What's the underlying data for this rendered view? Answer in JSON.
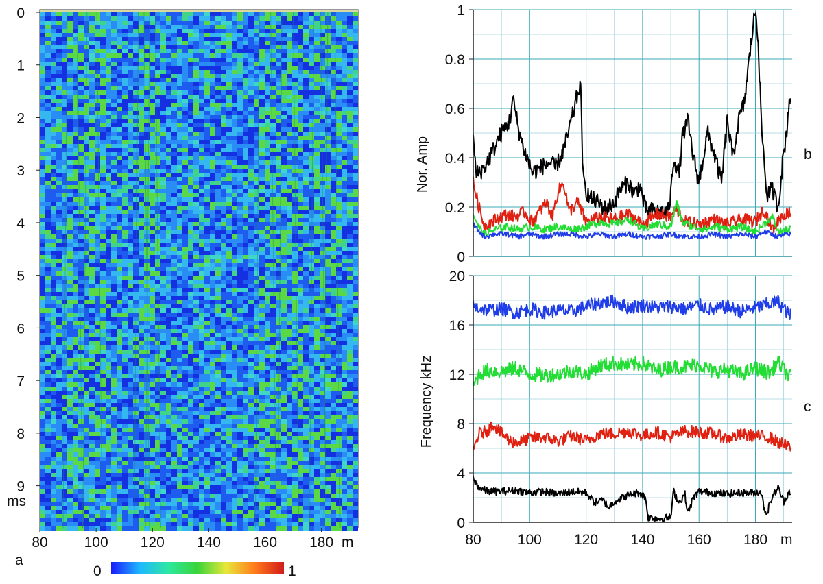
{
  "figure": {
    "panel_labels": {
      "a": "a",
      "b": "b",
      "c": "c"
    }
  },
  "chart_data": [
    {
      "type": "heatmap",
      "panel": "a",
      "x_ticks": [
        "80",
        "100",
        "120",
        "140",
        "160",
        "180"
      ],
      "x_unit": "m",
      "y_ticks": [
        "0",
        "1",
        "2",
        "3",
        "4",
        "5",
        "6",
        "7",
        "8",
        "9"
      ],
      "y_unit": "ms",
      "xlim": [
        80,
        193
      ],
      "ylim": [
        0,
        9.8
      ],
      "colorbar": {
        "min_label": "0",
        "max_label": "1",
        "colors": [
          "#1a1aff",
          "#1fb8ff",
          "#2ee8a0",
          "#3ad43a",
          "#e8e83a",
          "#ff7a1a",
          "#d11a1a"
        ]
      },
      "band_x_ranges": [
        [
          88,
          102
        ],
        [
          114,
          122
        ],
        [
          156,
          172
        ],
        [
          176,
          186
        ]
      ],
      "description_note": ""
    },
    {
      "type": "line",
      "panel": "b",
      "ylabel": "Nor. Amp",
      "y_ticks": [
        "0",
        "0.2",
        "0.4",
        "0.6",
        "0.8",
        "1"
      ],
      "ylim": [
        0,
        1
      ],
      "xlim": [
        80,
        193
      ],
      "grid": true,
      "series": [
        {
          "color": "#000000",
          "anchors": [
            [
              80,
              0.48
            ],
            [
              81,
              0.33
            ],
            [
              84,
              0.36
            ],
            [
              87,
              0.43
            ],
            [
              90,
              0.5
            ],
            [
              93,
              0.55
            ],
            [
              94,
              0.64
            ],
            [
              96,
              0.52
            ],
            [
              97,
              0.47
            ],
            [
              99,
              0.4
            ],
            [
              101,
              0.34
            ],
            [
              104,
              0.36
            ],
            [
              107,
              0.38
            ],
            [
              109,
              0.36
            ],
            [
              111,
              0.4
            ],
            [
              113,
              0.47
            ],
            [
              115,
              0.56
            ],
            [
              117,
              0.66
            ],
            [
              118,
              0.7
            ],
            [
              119,
              0.3
            ],
            [
              121,
              0.24
            ],
            [
              124,
              0.22
            ],
            [
              127,
              0.19
            ],
            [
              130,
              0.22
            ],
            [
              132,
              0.27
            ],
            [
              135,
              0.3
            ],
            [
              137,
              0.25
            ],
            [
              139,
              0.29
            ],
            [
              141,
              0.19
            ],
            [
              145,
              0.18
            ],
            [
              149,
              0.18
            ],
            [
              150,
              0.25
            ],
            [
              151,
              0.4
            ],
            [
              153,
              0.33
            ],
            [
              154,
              0.48
            ],
            [
              156,
              0.55
            ],
            [
              158,
              0.4
            ],
            [
              160,
              0.3
            ],
            [
              163,
              0.5
            ],
            [
              165,
              0.43
            ],
            [
              168,
              0.3
            ],
            [
              170,
              0.55
            ],
            [
              172,
              0.4
            ],
            [
              174,
              0.55
            ],
            [
              176,
              0.62
            ],
            [
              178,
              0.82
            ],
            [
              179,
              0.92
            ],
            [
              180,
              1.0
            ],
            [
              181,
              0.88
            ],
            [
              182,
              0.55
            ],
            [
              184,
              0.25
            ],
            [
              186,
              0.27
            ],
            [
              188,
              0.2
            ],
            [
              190,
              0.42
            ],
            [
              191,
              0.5
            ],
            [
              192,
              0.64
            ]
          ]
        },
        {
          "color": "#e02010",
          "anchors": [
            [
              80,
              0.3
            ],
            [
              82,
              0.2
            ],
            [
              84,
              0.12
            ],
            [
              88,
              0.15
            ],
            [
              92,
              0.17
            ],
            [
              95,
              0.16
            ],
            [
              98,
              0.18
            ],
            [
              101,
              0.14
            ],
            [
              104,
              0.19
            ],
            [
              106,
              0.22
            ],
            [
              108,
              0.16
            ],
            [
              110,
              0.26
            ],
            [
              112,
              0.3
            ],
            [
              114,
              0.18
            ],
            [
              117,
              0.22
            ],
            [
              120,
              0.14
            ],
            [
              125,
              0.16
            ],
            [
              130,
              0.15
            ],
            [
              135,
              0.17
            ],
            [
              140,
              0.13
            ],
            [
              145,
              0.17
            ],
            [
              150,
              0.16
            ],
            [
              152,
              0.19
            ],
            [
              155,
              0.14
            ],
            [
              160,
              0.13
            ],
            [
              165,
              0.15
            ],
            [
              170,
              0.13
            ],
            [
              175,
              0.15
            ],
            [
              180,
              0.14
            ],
            [
              183,
              0.19
            ],
            [
              186,
              0.11
            ],
            [
              189,
              0.16
            ],
            [
              192,
              0.18
            ]
          ]
        },
        {
          "color": "#22dd33",
          "anchors": [
            [
              80,
              0.17
            ],
            [
              82,
              0.12
            ],
            [
              84,
              0.09
            ],
            [
              88,
              0.11
            ],
            [
              92,
              0.12
            ],
            [
              96,
              0.11
            ],
            [
              100,
              0.12
            ],
            [
              105,
              0.11
            ],
            [
              110,
              0.12
            ],
            [
              115,
              0.11
            ],
            [
              120,
              0.12
            ],
            [
              125,
              0.14
            ],
            [
              130,
              0.13
            ],
            [
              135,
              0.15
            ],
            [
              140,
              0.11
            ],
            [
              145,
              0.13
            ],
            [
              150,
              0.12
            ],
            [
              152,
              0.22
            ],
            [
              154,
              0.14
            ],
            [
              158,
              0.12
            ],
            [
              162,
              0.11
            ],
            [
              166,
              0.12
            ],
            [
              170,
              0.11
            ],
            [
              175,
              0.12
            ],
            [
              180,
              0.1
            ],
            [
              184,
              0.14
            ],
            [
              186,
              0.16
            ],
            [
              188,
              0.1
            ],
            [
              192,
              0.11
            ]
          ]
        },
        {
          "color": "#1f3de8",
          "anchors": [
            [
              80,
              0.13
            ],
            [
              82,
              0.1
            ],
            [
              84,
              0.08
            ],
            [
              88,
              0.09
            ],
            [
              92,
              0.09
            ],
            [
              96,
              0.08
            ],
            [
              100,
              0.09
            ],
            [
              105,
              0.08
            ],
            [
              110,
              0.09
            ],
            [
              115,
              0.09
            ],
            [
              120,
              0.08
            ],
            [
              125,
              0.09
            ],
            [
              130,
              0.08
            ],
            [
              135,
              0.09
            ],
            [
              140,
              0.08
            ],
            [
              145,
              0.08
            ],
            [
              150,
              0.09
            ],
            [
              155,
              0.08
            ],
            [
              160,
              0.08
            ],
            [
              165,
              0.09
            ],
            [
              170,
              0.08
            ],
            [
              175,
              0.09
            ],
            [
              180,
              0.08
            ],
            [
              183,
              0.1
            ],
            [
              186,
              0.09
            ],
            [
              188,
              0.08
            ],
            [
              192,
              0.09
            ]
          ]
        }
      ]
    },
    {
      "type": "line",
      "panel": "c",
      "ylabel": "Frequency kHz",
      "y_ticks": [
        "0",
        "4",
        "8",
        "12",
        "16",
        "20"
      ],
      "ylim": [
        0,
        20
      ],
      "x_ticks": [
        "80",
        "100",
        "120",
        "140",
        "160",
        "180"
      ],
      "x_unit": "m",
      "xlim": [
        80,
        193
      ],
      "grid": true,
      "series": [
        {
          "color": "#1f3de8",
          "anchors": [
            [
              80,
              17.5
            ],
            [
              85,
              17.2
            ],
            [
              90,
              17.3
            ],
            [
              95,
              17.0
            ],
            [
              100,
              17.3
            ],
            [
              105,
              17.0
            ],
            [
              110,
              17.2
            ],
            [
              115,
              17.1
            ],
            [
              120,
              17.5
            ],
            [
              125,
              17.8
            ],
            [
              130,
              17.9
            ],
            [
              135,
              17.4
            ],
            [
              140,
              17.6
            ],
            [
              145,
              17.4
            ],
            [
              150,
              17.5
            ],
            [
              155,
              17.3
            ],
            [
              160,
              17.6
            ],
            [
              165,
              17.2
            ],
            [
              170,
              17.5
            ],
            [
              175,
              17.1
            ],
            [
              180,
              17.4
            ],
            [
              185,
              17.7
            ],
            [
              188,
              17.9
            ],
            [
              192,
              16.8
            ]
          ]
        },
        {
          "color": "#22dd33",
          "anchors": [
            [
              80,
              11.0
            ],
            [
              82,
              12.0
            ],
            [
              85,
              12.3
            ],
            [
              90,
              12.2
            ],
            [
              95,
              12.5
            ],
            [
              100,
              12.0
            ],
            [
              105,
              11.9
            ],
            [
              110,
              12.0
            ],
            [
              115,
              12.3
            ],
            [
              120,
              12.0
            ],
            [
              125,
              12.7
            ],
            [
              130,
              12.9
            ],
            [
              135,
              12.7
            ],
            [
              140,
              12.9
            ],
            [
              145,
              12.3
            ],
            [
              150,
              12.6
            ],
            [
              155,
              12.6
            ],
            [
              160,
              12.8
            ],
            [
              165,
              12.2
            ],
            [
              170,
              12.4
            ],
            [
              175,
              12.0
            ],
            [
              180,
              12.5
            ],
            [
              185,
              12.1
            ],
            [
              188,
              13.0
            ],
            [
              192,
              11.8
            ]
          ]
        },
        {
          "color": "#e02010",
          "anchors": [
            [
              80,
              5.8
            ],
            [
              82,
              7.2
            ],
            [
              85,
              7.4
            ],
            [
              87,
              8.0
            ],
            [
              90,
              7.2
            ],
            [
              93,
              6.6
            ],
            [
              96,
              6.5
            ],
            [
              100,
              6.8
            ],
            [
              105,
              6.9
            ],
            [
              110,
              6.6
            ],
            [
              115,
              7.0
            ],
            [
              120,
              6.6
            ],
            [
              125,
              7.2
            ],
            [
              130,
              7.2
            ],
            [
              135,
              7.4
            ],
            [
              140,
              7.0
            ],
            [
              145,
              7.3
            ],
            [
              150,
              6.9
            ],
            [
              155,
              7.4
            ],
            [
              160,
              7.3
            ],
            [
              165,
              7.2
            ],
            [
              170,
              6.8
            ],
            [
              175,
              7.1
            ],
            [
              180,
              7.0
            ],
            [
              185,
              6.9
            ],
            [
              188,
              6.5
            ],
            [
              192,
              6.1
            ]
          ]
        },
        {
          "color": "#000000",
          "anchors": [
            [
              80,
              3.5
            ],
            [
              82,
              2.8
            ],
            [
              85,
              2.5
            ],
            [
              90,
              2.5
            ],
            [
              95,
              2.6
            ],
            [
              100,
              2.4
            ],
            [
              105,
              2.5
            ],
            [
              110,
              2.3
            ],
            [
              115,
              2.5
            ],
            [
              120,
              2.4
            ],
            [
              123,
              1.6
            ],
            [
              126,
              1.8
            ],
            [
              128,
              1.2
            ],
            [
              130,
              1.7
            ],
            [
              133,
              2.0
            ],
            [
              136,
              2.3
            ],
            [
              139,
              2.4
            ],
            [
              141,
              2.0
            ],
            [
              142,
              0.4
            ],
            [
              146,
              0.3
            ],
            [
              150,
              0.4
            ],
            [
              151,
              2.5
            ],
            [
              153,
              1.6
            ],
            [
              155,
              2.3
            ],
            [
              156,
              0.7
            ],
            [
              158,
              2.0
            ],
            [
              160,
              2.5
            ],
            [
              165,
              2.4
            ],
            [
              170,
              2.3
            ],
            [
              175,
              2.4
            ],
            [
              180,
              2.4
            ],
            [
              182,
              2.5
            ],
            [
              183,
              1.2
            ],
            [
              184,
              0.7
            ],
            [
              186,
              2.1
            ],
            [
              188,
              2.8
            ],
            [
              190,
              1.7
            ],
            [
              192,
              2.5
            ]
          ]
        }
      ]
    }
  ]
}
